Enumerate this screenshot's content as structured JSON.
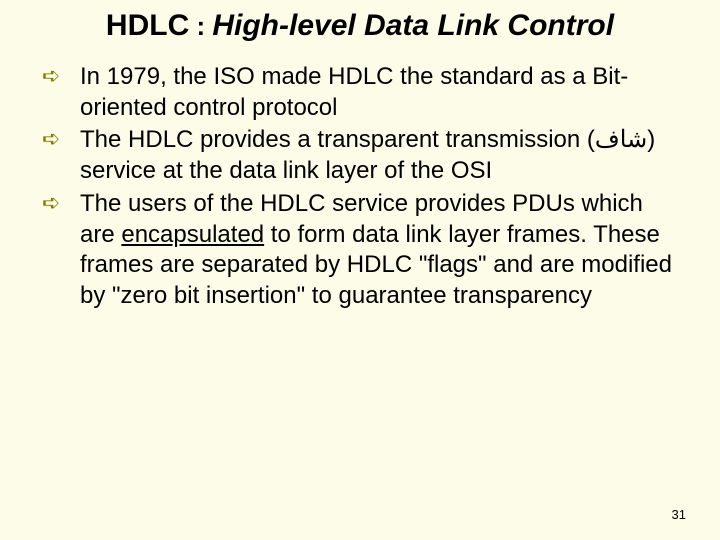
{
  "slide": {
    "background_color": "#fcfce8",
    "title": {
      "prefix": "HDLC",
      "colon": " : ",
      "main": "High-level Data Link Control",
      "font_size": 30,
      "font_weight": "bold",
      "font_style": "italic",
      "text_color": "#000000"
    },
    "bullets": [
      {
        "marker": "➪",
        "text": "In 1979, the ISO made HDLC the standard as a Bit-oriented control protocol"
      },
      {
        "marker": "➪",
        "text": "The HDLC provides a transparent transmission (شاف) service at the data link layer of the OSI"
      },
      {
        "marker": "➪",
        "text_before": "The users of the HDLC service provides PDUs which are ",
        "underlined": "encapsulated",
        "text_after": " to form data link layer frames. These frames are separated by HDLC \"flags\" and are modified by \"zero bit insertion\" to guarantee transparency"
      }
    ],
    "bullet_style": {
      "marker_color": "#808000",
      "text_font_size": 24,
      "text_color": "#000000"
    },
    "page_number": "31",
    "page_number_font_size": 13
  }
}
